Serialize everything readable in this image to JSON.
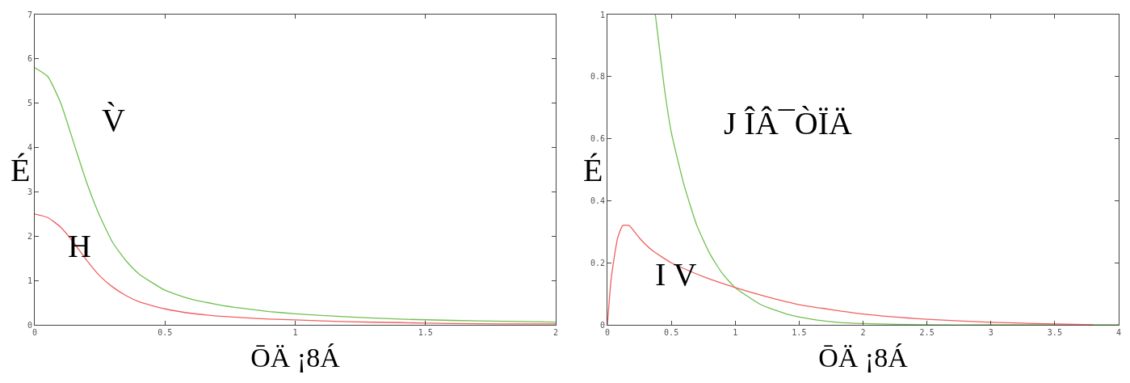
{
  "chart_data": [
    {
      "type": "line",
      "xlabel": "ŌÄ ¡8Á",
      "ylabel": "É",
      "xlim": [
        0,
        2
      ],
      "ylim": [
        0,
        7
      ],
      "xticks": [
        0,
        0.5,
        1,
        1.5,
        2
      ],
      "yticks": [
        0,
        1,
        2,
        3,
        4,
        5,
        6,
        7
      ],
      "grid": false,
      "x": [
        0,
        0.05,
        0.1,
        0.15,
        0.2,
        0.25,
        0.3,
        0.35,
        0.4,
        0.5,
        0.6,
        0.7,
        0.8,
        0.9,
        1.0,
        1.2,
        1.4,
        1.6,
        1.8,
        2.0
      ],
      "series": [
        {
          "color": "#70c050",
          "values": [
            5.8,
            5.6,
            5.0,
            4.1,
            3.2,
            2.45,
            1.85,
            1.45,
            1.15,
            0.78,
            0.58,
            0.46,
            0.37,
            0.3,
            0.25,
            0.18,
            0.13,
            0.1,
            0.08,
            0.06
          ]
        },
        {
          "color": "#f06060",
          "values": [
            2.5,
            2.42,
            2.2,
            1.85,
            1.45,
            1.1,
            0.85,
            0.66,
            0.52,
            0.36,
            0.26,
            0.2,
            0.16,
            0.13,
            0.11,
            0.07,
            0.05,
            0.03,
            0.02,
            0.02
          ]
        }
      ],
      "annotations": [
        "V̀",
        "H"
      ]
    },
    {
      "type": "line",
      "xlabel": "ŌÄ ¡8Á",
      "ylabel": "É",
      "xlim": [
        0,
        4
      ],
      "ylim": [
        0,
        1
      ],
      "xticks": [
        0,
        0.5,
        1,
        1.5,
        2,
        2.5,
        3,
        3.5,
        4
      ],
      "yticks": [
        0,
        0.2,
        0.4,
        0.6,
        0.8,
        1
      ],
      "grid": false,
      "series": [
        {
          "color": "#70c050",
          "x": [
            0.375,
            0.45,
            0.5,
            0.6,
            0.7,
            0.8,
            0.9,
            1,
            1.2,
            1.4,
            1.6,
            1.8,
            2,
            2.5,
            3,
            3.5,
            4
          ],
          "values": [
            1,
            0.75,
            0.62,
            0.45,
            0.32,
            0.23,
            0.165,
            0.12,
            0.065,
            0.035,
            0.018,
            0.008,
            0.004,
            0,
            0,
            0,
            0
          ]
        },
        {
          "color": "#f06060",
          "x": [
            0,
            0.03,
            0.08,
            0.12,
            0.17,
            0.25,
            0.35,
            0.5,
            0.75,
            1,
            1.25,
            1.5,
            2,
            2.5,
            3,
            3.5,
            3.8
          ],
          "values": [
            0,
            0.15,
            0.28,
            0.32,
            0.32,
            0.28,
            0.24,
            0.2,
            0.155,
            0.12,
            0.09,
            0.065,
            0.035,
            0.018,
            0.008,
            0.003,
            0
          ]
        }
      ],
      "annotations": [
        "J ÎÂ¯ÒÏÄ",
        "I V"
      ]
    }
  ]
}
